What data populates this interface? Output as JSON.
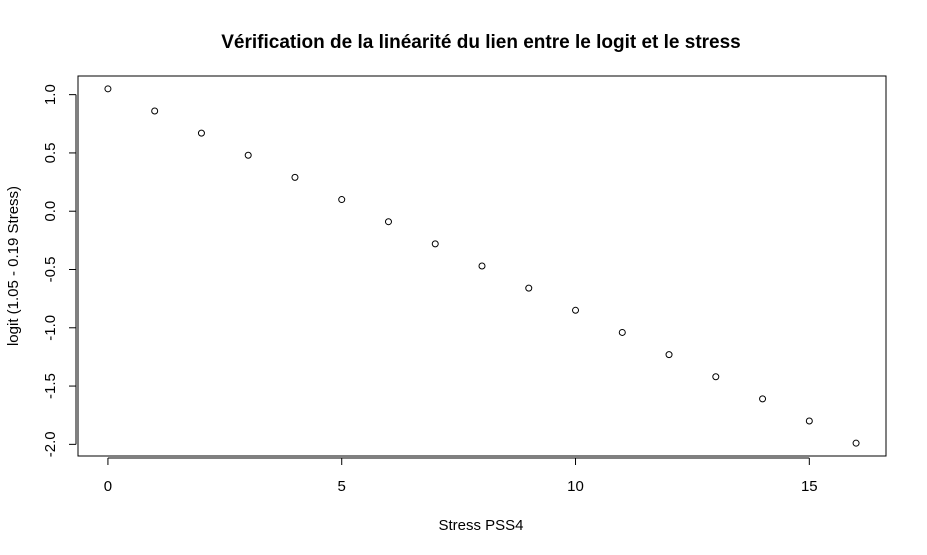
{
  "chart_data": {
    "type": "scatter",
    "title": "Vérification de la linéarité du lien entre le logit et le stress",
    "xlabel": "Stress PSS4",
    "ylabel": "logit (1.05 - 0.19 Stress)",
    "x": [
      0,
      1,
      2,
      3,
      4,
      5,
      6,
      7,
      8,
      9,
      10,
      11,
      12,
      13,
      14,
      15,
      16
    ],
    "y": [
      1.05,
      0.86,
      0.67,
      0.48,
      0.29,
      0.1,
      -0.09,
      -0.28,
      -0.47,
      -0.66,
      -0.85,
      -1.04,
      -1.23,
      -1.42,
      -1.61,
      -1.8,
      -1.99
    ],
    "xlim": [
      -0.64,
      16.64
    ],
    "ylim": [
      -2.1,
      1.16
    ],
    "xticks": [
      0,
      5,
      10,
      15
    ],
    "xtick_labels": [
      "0",
      "5",
      "10",
      "15"
    ],
    "yticks": [
      -2.0,
      -1.5,
      -1.0,
      -0.5,
      0.0,
      0.5,
      1.0
    ],
    "ytick_labels": [
      "-2.0",
      "-1.5",
      "-1.0",
      "-0.5",
      "0.0",
      "0.5",
      "1.0"
    ],
    "grid": false,
    "marker": "open-circle",
    "colors": {
      "marker": "#000000",
      "axes": "#000000",
      "background": "#ffffff"
    }
  }
}
